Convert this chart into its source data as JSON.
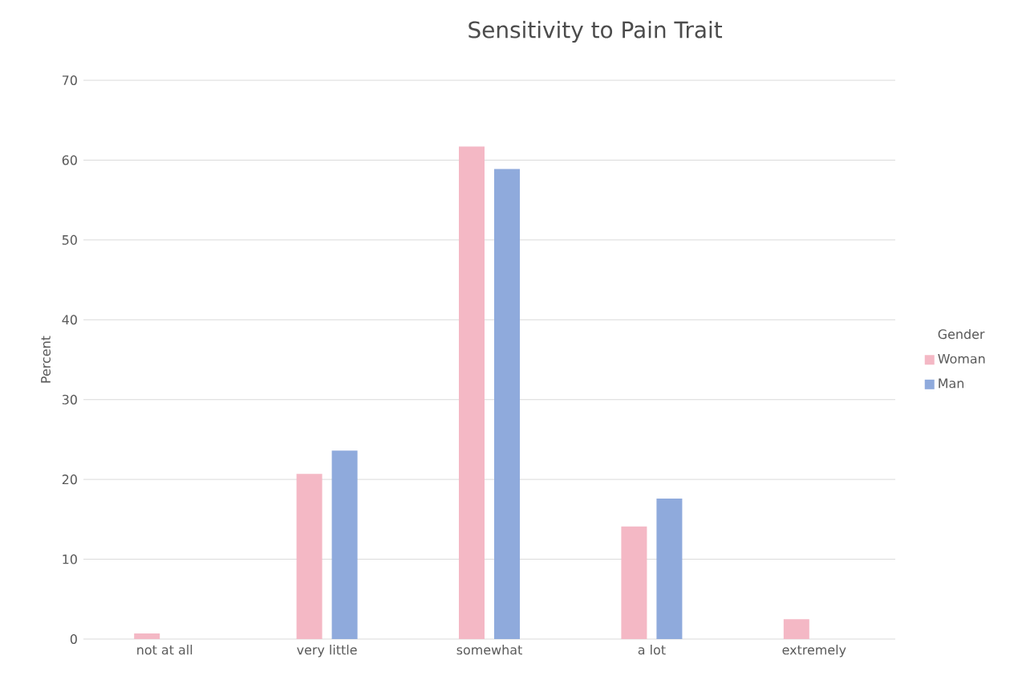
{
  "chart_data": {
    "type": "bar",
    "title": "Sensitivity to Pain Trait",
    "ylabel": "Percent",
    "legend_title": "Gender",
    "categories": [
      "not at all",
      "very little",
      "somewhat",
      "a lot",
      "extremely"
    ],
    "series": [
      {
        "name": "Woman",
        "color": "#f4b8c5",
        "values": [
          0.7,
          20.7,
          61.7,
          14.1,
          2.5
        ]
      },
      {
        "name": "Man",
        "color": "#8faadc",
        "values": [
          0,
          23.6,
          58.9,
          17.6,
          0
        ]
      }
    ],
    "ylim": [
      0,
      70
    ],
    "yticks": [
      0,
      10,
      20,
      30,
      40,
      50,
      60,
      70
    ],
    "grid": "y",
    "legend": "right"
  }
}
